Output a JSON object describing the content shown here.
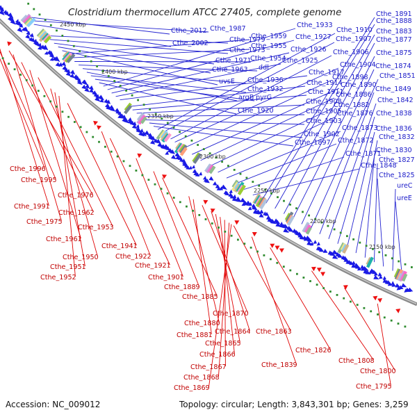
{
  "title": "Clostridium thermocellum ATCC 27405, complete genome",
  "footer": {
    "accession": "Accession: NC_009012",
    "summary": "Topology: circular; Length: 3,843,301 bp; Genes: 3,259"
  },
  "colors": {
    "forward_strand": "#1a1ae6",
    "reverse_strand": "#ee1111",
    "backbone": "#8a8a8a",
    "marker": "#2e8b2e"
  },
  "kbp_ticks": [
    "2450 kbp",
    "2400 kbp",
    "2350 kbp",
    "2300 kbp",
    "2250 kbp",
    "2200 kbp",
    "2150 kbp"
  ],
  "blue_labels": [
    "Cthe_2012",
    "Cthe_1987",
    "Cthe_2002",
    "Cthe_1979",
    "Cthe_1973",
    "Cthe_1971",
    "Cthe_1963",
    "uvsE",
    "Cthe_1959",
    "Cthe_1955",
    "Cthe_1954",
    "ddl",
    "Cthe_1936",
    "argB",
    "Cthe_1932",
    "pyrG",
    "Cthe_1920",
    "Cthe_1933",
    "Cthe_1927",
    "Cthe_1926",
    "Cthe_1925",
    "Cthe_1917",
    "Cthe_1914",
    "Cthe_1911",
    "Cthe_1908",
    "Cthe_1905",
    "Cthe_1903",
    "Cthe_1902",
    "Cthe_1897",
    "Cthe_1910",
    "Cthe_1907",
    "Cthe_1906",
    "Cthe_1904",
    "Cthe_1898",
    "Cthe_1890",
    "Cthe_1886",
    "Cthe_1882",
    "Cthe_1876",
    "Cthe_1873",
    "Cthe_1872",
    "Cthe_1871",
    "Cthe_1848",
    "Cthe_1891",
    "Cthe_1888",
    "Cthe_1883",
    "Cthe_1877",
    "Cthe_1875",
    "Cthe_1874",
    "Cthe_1851",
    "Cthe_1849",
    "Cthe_1842",
    "Cthe_1838",
    "Cthe_1836",
    "Cthe_1832",
    "Cthe_1830",
    "Cthe_1827",
    "Cthe_1825",
    "ureC",
    "ureE"
  ],
  "red_labels": [
    "Cthe_1996",
    "Cthe_1995",
    "Cthe_1976",
    "Cthe_1991",
    "Cthe_1975",
    "Cthe_1962",
    "Cthe_1953",
    "Cthe_1961",
    "Cthe_1941",
    "Cthe_1950",
    "Cthe_1922",
    "Cthe_1951",
    "Cthe_1921",
    "Cthe_1952",
    "Cthe_1901",
    "Cthe_1889",
    "Cthe_1885",
    "Cthe_1870",
    "Cthe_1880",
    "Cthe_1864",
    "Cthe_1881",
    "Cthe_1865",
    "Cthe_1863",
    "Cthe_1866",
    "Cthe_1867",
    "Cthe_1868",
    "Cthe_1869",
    "Cthe_1839",
    "Cthe_1826",
    "Cthe_1808",
    "Cthe_1800",
    "Cthe_1795"
  ]
}
